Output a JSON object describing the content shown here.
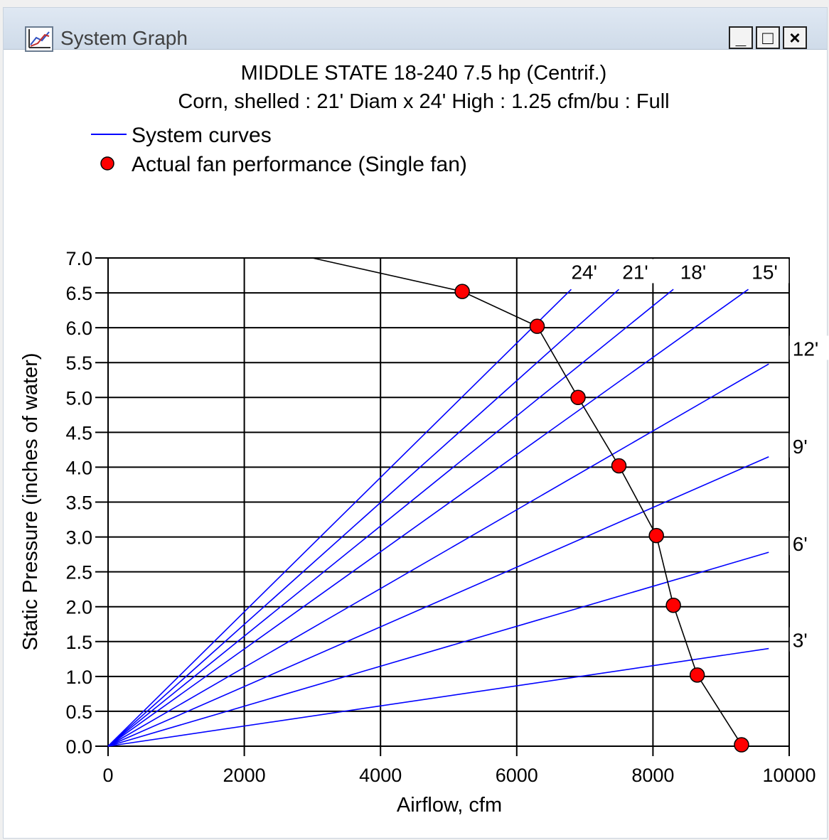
{
  "window": {
    "title": "System Graph",
    "minimize_label": "_",
    "maximize_label": "□",
    "close_label": "×"
  },
  "chart_data": {
    "type": "line",
    "title": "MIDDLE STATE 18-240  7.5 hp (Centrif.)",
    "subtitle": "Corn, shelled : 21' Diam x 24' High : 1.25 cfm/bu : Full",
    "xlabel": "Airflow, cfm",
    "ylabel": "Static Pressure (inches of water)",
    "xlim": [
      0,
      10000
    ],
    "ylim": [
      0,
      7.0
    ],
    "x_ticks": [
      "0",
      "2000",
      "4000",
      "6000",
      "8000",
      "10000"
    ],
    "y_ticks": [
      "0.0",
      "0.5",
      "1.0",
      "1.5",
      "2.0",
      "2.5",
      "3.0",
      "3.5",
      "4.0",
      "4.5",
      "5.0",
      "5.5",
      "6.0",
      "6.5",
      "7.0"
    ],
    "grid": true,
    "legend": [
      {
        "label": "System curves",
        "marker": "line",
        "color": "#0000ff"
      },
      {
        "label": "Actual fan performance (Single fan)",
        "marker": "circle",
        "color": "#ff0000"
      }
    ],
    "system_curves": [
      {
        "label": "3'",
        "x": [
          0,
          9700
        ],
        "y": [
          0,
          1.4
        ]
      },
      {
        "label": "6'",
        "x": [
          0,
          9700
        ],
        "y": [
          0,
          2.78
        ]
      },
      {
        "label": "9'",
        "x": [
          0,
          9700
        ],
        "y": [
          0,
          4.15
        ]
      },
      {
        "label": "12'",
        "x": [
          0,
          9700
        ],
        "y": [
          0,
          5.48
        ]
      },
      {
        "label": "15'",
        "x": [
          0,
          9400
        ],
        "y": [
          0,
          6.55
        ]
      },
      {
        "label": "18'",
        "x": [
          0,
          8300
        ],
        "y": [
          0,
          6.55
        ]
      },
      {
        "label": "21'",
        "x": [
          0,
          7500
        ],
        "y": [
          0,
          6.55
        ]
      },
      {
        "label": "24'",
        "x": [
          0,
          6800
        ],
        "y": [
          0,
          6.55
        ]
      }
    ],
    "fan_curve": {
      "name": "Actual fan performance (Single fan)",
      "line": {
        "x": [
          3000,
          5200,
          6300,
          6900,
          7500,
          8050,
          8300,
          8650,
          9300
        ],
        "y": [
          7.0,
          6.52,
          6.02,
          5.0,
          4.02,
          3.02,
          2.02,
          1.02,
          0.02
        ]
      },
      "points": {
        "x": [
          5200,
          6300,
          6900,
          7500,
          8050,
          8300,
          8650,
          9300
        ],
        "y": [
          6.52,
          6.02,
          5.0,
          4.02,
          3.02,
          2.02,
          1.02,
          0.02
        ]
      },
      "line_color": "#000000",
      "marker_color": "#ff0000"
    },
    "curve_labels": [
      {
        "text": "24'",
        "x": 6800,
        "y": 6.7
      },
      {
        "text": "21'",
        "x": 7550,
        "y": 6.7
      },
      {
        "text": "18'",
        "x": 8400,
        "y": 6.7
      },
      {
        "text": "15'",
        "x": 9450,
        "y": 6.7
      },
      {
        "text": "12'",
        "x": 10050,
        "y": 5.6
      },
      {
        "text": "9'",
        "x": 10050,
        "y": 4.2
      },
      {
        "text": "6'",
        "x": 10050,
        "y": 2.8
      },
      {
        "text": "3'",
        "x": 10050,
        "y": 1.42
      }
    ]
  }
}
